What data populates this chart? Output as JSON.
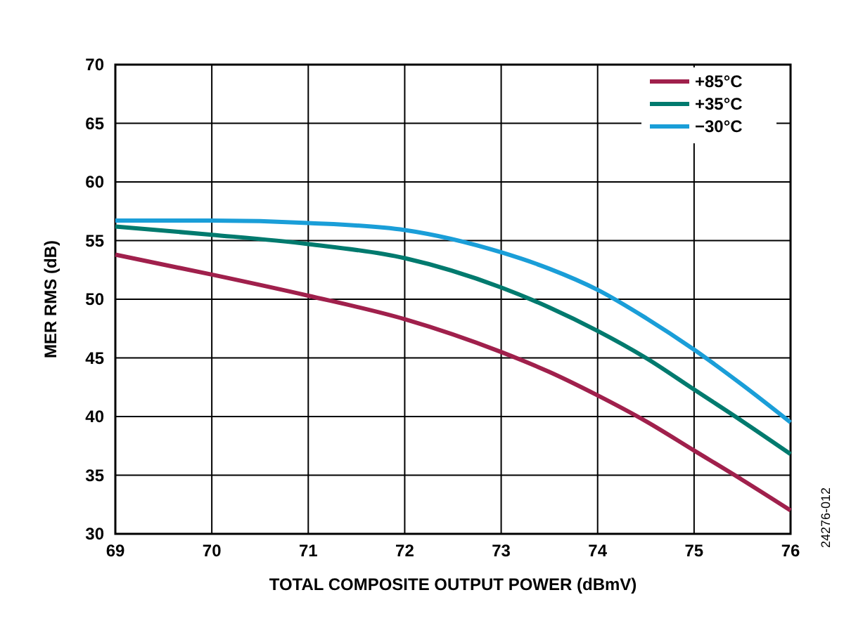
{
  "chart_data": {
    "type": "line",
    "xlabel": "TOTAL COMPOSITE OUTPUT POWER (dBmV)",
    "ylabel": "MER RMS (dB)",
    "x": [
      69,
      70,
      71,
      72,
      73,
      73.5,
      74,
      74.5,
      75,
      75.5,
      76
    ],
    "series": [
      {
        "name": "+85°C",
        "color": "#a0204c",
        "values": [
          53.8,
          52.1,
          50.3,
          48.3,
          45.5,
          43.8,
          41.8,
          39.6,
          37.1,
          34.6,
          32.0
        ]
      },
      {
        "name": "+35°C",
        "color": "#007a6e",
        "values": [
          56.2,
          55.5,
          54.7,
          53.5,
          51.0,
          49.3,
          47.3,
          45.0,
          42.3,
          39.6,
          36.8
        ]
      },
      {
        "name": "−30°C",
        "color": "#1a9ed8",
        "values": [
          56.7,
          56.7,
          56.5,
          55.9,
          54.0,
          52.6,
          50.8,
          48.4,
          45.7,
          42.7,
          39.5
        ]
      }
    ],
    "xlim": [
      69,
      76
    ],
    "xticks": [
      69,
      70,
      71,
      72,
      73,
      74,
      75,
      76
    ],
    "ylim": [
      30,
      70
    ],
    "yticks": [
      30,
      35,
      40,
      45,
      50,
      55,
      60,
      65,
      70
    ],
    "grid": true,
    "legend": "top right",
    "marker": "none",
    "line_style": "solid",
    "annotations": [
      "24276-012"
    ]
  }
}
